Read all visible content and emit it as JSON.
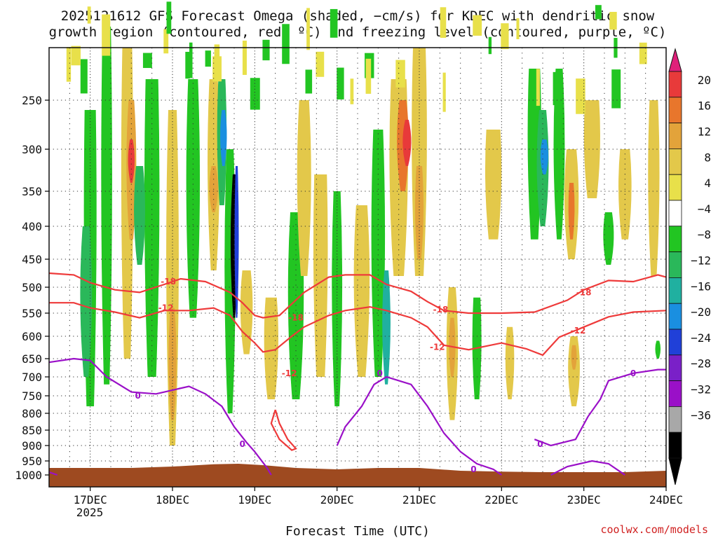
{
  "chart_data": {
    "type": "heatmap",
    "title_line1": "2025121612 GFS Forecast Omega (shaded, −cm/s) for KDEC with dendritic snow",
    "title_line2": "growth region (contoured, red, ºC) and freezing level (contoured, purple, ºC)",
    "xlabel": "Forecast Time (UTC)",
    "year_label": "2025",
    "credit": "coolwx.com/models",
    "x_range_days": [
      16.5,
      24.0
    ],
    "x_ticks": [
      {
        "day": 17,
        "label": "17DEC"
      },
      {
        "day": 18,
        "label": "18DEC"
      },
      {
        "day": 19,
        "label": "19DEC"
      },
      {
        "day": 20,
        "label": "20DEC"
      },
      {
        "day": 21,
        "label": "21DEC"
      },
      {
        "day": 22,
        "label": "22DEC"
      },
      {
        "day": 23,
        "label": "23DEC"
      },
      {
        "day": 24,
        "label": "24DEC"
      }
    ],
    "y_ticks": [
      "250",
      "300",
      "350",
      "400",
      "450",
      "500",
      "550",
      "600",
      "650",
      "700",
      "750",
      "800",
      "850",
      "900",
      "950",
      "1000"
    ],
    "y_tick_values": [
      250,
      300,
      350,
      400,
      450,
      500,
      550,
      600,
      650,
      700,
      750,
      800,
      850,
      900,
      950,
      1000
    ],
    "colorbar": {
      "labels": [
        "20",
        "16",
        "12",
        "8",
        "4",
        "−4",
        "−8",
        "−12",
        "−16",
        "−20",
        "−24",
        "−28",
        "−32",
        "−36"
      ],
      "values": [
        20,
        16,
        12,
        8,
        4,
        -4,
        -8,
        -12,
        -16,
        -20,
        -24,
        -28,
        -32,
        -36
      ],
      "colors": [
        "#e83a3a",
        "#e8762c",
        "#e3a33a",
        "#e3c84a",
        "#e8e04a",
        "#ffffff",
        "#22c522",
        "#2ab85a",
        "#20b0a0",
        "#1a8fe0",
        "#2040d8",
        "#7a20c8",
        "#9a10c8",
        "#a8a8a8",
        "#000000"
      ],
      "top_arrow": "#e0207a",
      "bottom_arrow": "#000000"
    },
    "contours": {
      "dgz_color": "#ee3a3a",
      "freezing_color": "#9a10c8",
      "labels": [
        {
          "text": "-18",
          "day": 17.95,
          "p": 490,
          "kind": "dgz"
        },
        {
          "text": "-12",
          "day": 17.92,
          "p": 540,
          "kind": "dgz"
        },
        {
          "text": "-18",
          "day": 19.5,
          "p": 560,
          "kind": "dgz"
        },
        {
          "text": "-12",
          "day": 19.42,
          "p": 690,
          "kind": "dgz"
        },
        {
          "text": "-18",
          "day": 21.26,
          "p": 543,
          "kind": "dgz"
        },
        {
          "text": "-12",
          "day": 21.22,
          "p": 624,
          "kind": "dgz"
        },
        {
          "text": "-18",
          "day": 23.0,
          "p": 510,
          "kind": "dgz"
        },
        {
          "text": "-12",
          "day": 22.93,
          "p": 588,
          "kind": "dgz"
        },
        {
          "text": "0",
          "day": 17.58,
          "p": 750,
          "kind": "fz"
        },
        {
          "text": "0",
          "day": 18.85,
          "p": 895,
          "kind": "fz"
        },
        {
          "text": "0",
          "day": 20.52,
          "p": 690,
          "kind": "fz"
        },
        {
          "text": "0",
          "day": 21.66,
          "p": 980,
          "kind": "fz"
        },
        {
          "text": "0",
          "day": 22.47,
          "p": 895,
          "kind": "fz"
        },
        {
          "text": "0",
          "day": 23.6,
          "p": 690,
          "kind": "fz"
        }
      ],
      "dgz_minus18": [
        [
          16.5,
          475
        ],
        [
          16.8,
          478
        ],
        [
          17.0,
          492
        ],
        [
          17.3,
          505
        ],
        [
          17.6,
          510
        ],
        [
          17.9,
          495
        ],
        [
          18.1,
          485
        ],
        [
          18.4,
          490
        ],
        [
          18.7,
          510
        ],
        [
          18.85,
          530
        ],
        [
          19.0,
          555
        ],
        [
          19.1,
          560
        ],
        [
          19.3,
          555
        ],
        [
          19.6,
          510
        ],
        [
          19.9,
          482
        ],
        [
          20.1,
          478
        ],
        [
          20.4,
          478
        ],
        [
          20.6,
          495
        ],
        [
          20.9,
          508
        ],
        [
          21.1,
          528
        ],
        [
          21.3,
          545
        ],
        [
          21.6,
          550
        ],
        [
          22.0,
          550
        ],
        [
          22.4,
          548
        ],
        [
          22.8,
          525
        ],
        [
          23.0,
          505
        ],
        [
          23.3,
          488
        ],
        [
          23.6,
          490
        ],
        [
          23.9,
          478
        ],
        [
          24.0,
          482
        ]
      ],
      "dgz_minus12": [
        [
          16.5,
          530
        ],
        [
          16.8,
          530
        ],
        [
          17.0,
          540
        ],
        [
          17.3,
          548
        ],
        [
          17.6,
          560
        ],
        [
          17.9,
          545
        ],
        [
          18.2,
          545
        ],
        [
          18.5,
          540
        ],
        [
          18.7,
          555
        ],
        [
          18.85,
          590
        ],
        [
          19.0,
          615
        ],
        [
          19.1,
          635
        ],
        [
          19.25,
          630
        ],
        [
          19.45,
          600
        ],
        [
          19.6,
          580
        ],
        [
          19.9,
          555
        ],
        [
          20.1,
          545
        ],
        [
          20.4,
          538
        ],
        [
          20.6,
          545
        ],
        [
          20.9,
          560
        ],
        [
          21.1,
          580
        ],
        [
          21.3,
          620
        ],
        [
          21.6,
          630
        ],
        [
          22.0,
          615
        ],
        [
          22.3,
          628
        ],
        [
          22.5,
          642
        ],
        [
          22.7,
          602
        ],
        [
          23.0,
          580
        ],
        [
          23.3,
          558
        ],
        [
          23.6,
          548
        ],
        [
          24.0,
          545
        ]
      ],
      "dgz_closed_loop": [
        [
          19.25,
          790
        ],
        [
          19.3,
          830
        ],
        [
          19.4,
          880
        ],
        [
          19.5,
          910
        ],
        [
          19.45,
          915
        ],
        [
          19.3,
          880
        ],
        [
          19.2,
          830
        ],
        [
          19.25,
          790
        ]
      ],
      "freezing_zero": [
        [
          [
            16.5,
            660
          ],
          [
            16.8,
            650
          ],
          [
            17.0,
            655
          ],
          [
            17.2,
            700
          ],
          [
            17.5,
            740
          ],
          [
            17.8,
            745
          ],
          [
            18.0,
            735
          ],
          [
            18.2,
            725
          ],
          [
            18.4,
            745
          ],
          [
            18.6,
            780
          ],
          [
            18.75,
            840
          ],
          [
            18.9,
            890
          ],
          [
            19.0,
            920
          ],
          [
            19.15,
            975
          ],
          [
            19.2,
            1000
          ]
        ],
        [
          [
            20.0,
            900
          ],
          [
            20.1,
            840
          ],
          [
            20.3,
            780
          ],
          [
            20.45,
            720
          ],
          [
            20.6,
            700
          ],
          [
            20.9,
            720
          ],
          [
            21.1,
            780
          ],
          [
            21.3,
            860
          ],
          [
            21.5,
            920
          ],
          [
            21.7,
            960
          ],
          [
            21.9,
            980
          ],
          [
            22.0,
            1000
          ]
        ],
        [
          [
            16.5,
            990
          ],
          [
            16.6,
            1000
          ]
        ],
        [
          [
            22.4,
            880
          ],
          [
            22.6,
            900
          ],
          [
            22.9,
            880
          ],
          [
            23.05,
            810
          ],
          [
            23.2,
            760
          ],
          [
            23.3,
            710
          ],
          [
            23.6,
            690
          ],
          [
            23.9,
            680
          ],
          [
            24.0,
            680
          ]
        ],
        [
          [
            22.6,
            1000
          ],
          [
            22.8,
            970
          ],
          [
            23.1,
            950
          ],
          [
            23.3,
            960
          ],
          [
            23.5,
            1000
          ]
        ]
      ]
    },
    "terrain": {
      "color": "#9e4a20",
      "top_p": [
        [
          16.5,
          975
        ],
        [
          17.0,
          975
        ],
        [
          17.5,
          975
        ],
        [
          18.0,
          970
        ],
        [
          18.5,
          962
        ],
        [
          18.8,
          960
        ],
        [
          19.1,
          965
        ],
        [
          19.5,
          975
        ],
        [
          20.0,
          980
        ],
        [
          20.5,
          975
        ],
        [
          21.0,
          975
        ],
        [
          21.5,
          985
        ],
        [
          22.0,
          988
        ],
        [
          22.5,
          990
        ],
        [
          23.0,
          990
        ],
        [
          23.5,
          990
        ],
        [
          24.0,
          985
        ]
      ]
    }
  }
}
